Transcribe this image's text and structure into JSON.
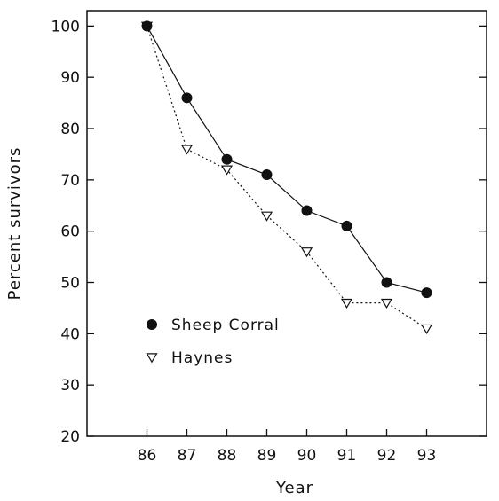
{
  "chart_data": {
    "type": "line",
    "title": "",
    "xlabel": "Year",
    "ylabel": "Percent survivors",
    "x": [
      86,
      87,
      88,
      89,
      90,
      91,
      92,
      93
    ],
    "x_tick_labels": [
      "86",
      "87",
      "88",
      "89",
      "90",
      "91",
      "92",
      "93"
    ],
    "y_tick_labels": [
      "20",
      "30",
      "40",
      "50",
      "60",
      "70",
      "80",
      "90",
      "100"
    ],
    "xlim": [
      84.5,
      94.5
    ],
    "ylim": [
      20,
      103
    ],
    "grid": false,
    "legend_placement": "lower-left",
    "series": [
      {
        "name": "Sheep Corral",
        "values": [
          100,
          86,
          74,
          71,
          64,
          61,
          50,
          48
        ],
        "marker": "filled-circle",
        "line_style": "solid",
        "color": "#111111"
      },
      {
        "name": "Haynes",
        "values": [
          100,
          76,
          72,
          63,
          56,
          46,
          46,
          41
        ],
        "marker": "open-down-triangle",
        "line_style": "dotted",
        "color": "#111111"
      }
    ]
  }
}
